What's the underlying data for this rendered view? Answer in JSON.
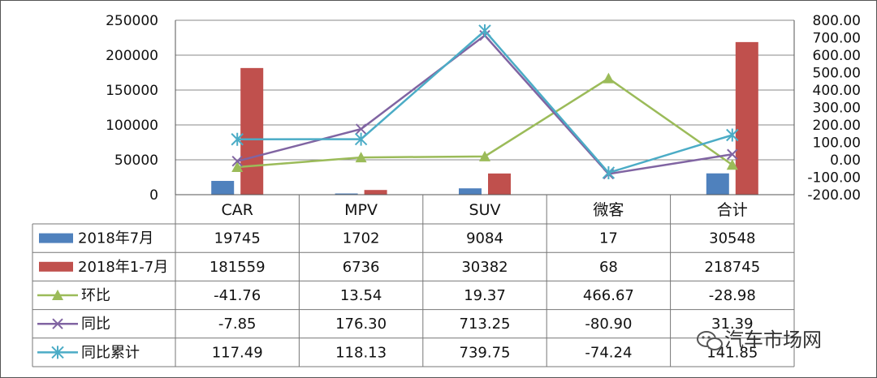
{
  "chart_data": {
    "type": "bar",
    "categories": [
      "CAR",
      "MPV",
      "SUV",
      "微客",
      "合计"
    ],
    "y_left": {
      "ylim": [
        0,
        250000
      ],
      "ticks": [
        "0",
        "50000",
        "100000",
        "150000",
        "200000",
        "250000"
      ]
    },
    "y_right": {
      "ylim": [
        -200,
        800
      ],
      "ticks": [
        "-200.00",
        "-100.00",
        "0.00",
        "100.00",
        "200.00",
        "300.00",
        "400.00",
        "500.00",
        "600.00",
        "700.00",
        "800.00"
      ]
    },
    "bar_series": [
      {
        "name": "2018年7月",
        "color": "#4f81bd",
        "values": [
          19745,
          1702,
          9084,
          17,
          30548
        ],
        "labels": [
          "19745",
          "1702",
          "9084",
          "17",
          "30548"
        ]
      },
      {
        "name": "2018年1-7月",
        "color": "#c0504d",
        "values": [
          181559,
          6736,
          30382,
          68,
          218745
        ],
        "labels": [
          "181559",
          "6736",
          "30382",
          "68",
          "218745"
        ]
      }
    ],
    "line_series": [
      {
        "name": "环比",
        "color": "#9bbb59",
        "marker": "triangle",
        "values": [
          -41.76,
          13.54,
          19.37,
          466.67,
          -28.98
        ],
        "labels": [
          "-41.76",
          "13.54",
          "19.37",
          "466.67",
          "-28.98"
        ]
      },
      {
        "name": "同比",
        "color": "#8064a2",
        "marker": "x",
        "values": [
          -7.85,
          176.3,
          713.25,
          -80.9,
          31.39
        ],
        "labels": [
          "-7.85",
          "176.30",
          "713.25",
          "-80.90",
          "31.39"
        ]
      },
      {
        "name": "同比累计",
        "color": "#4bacc6",
        "marker": "star",
        "values": [
          117.49,
          118.13,
          739.75,
          -74.24,
          141.85
        ],
        "labels": [
          "117.49",
          "118.13",
          "739.75",
          "-74.24",
          "141.85"
        ]
      }
    ],
    "grid": true,
    "legend": "data-table"
  },
  "watermark": {
    "text": "汽车市场网",
    "icon": "wechat-icon"
  }
}
